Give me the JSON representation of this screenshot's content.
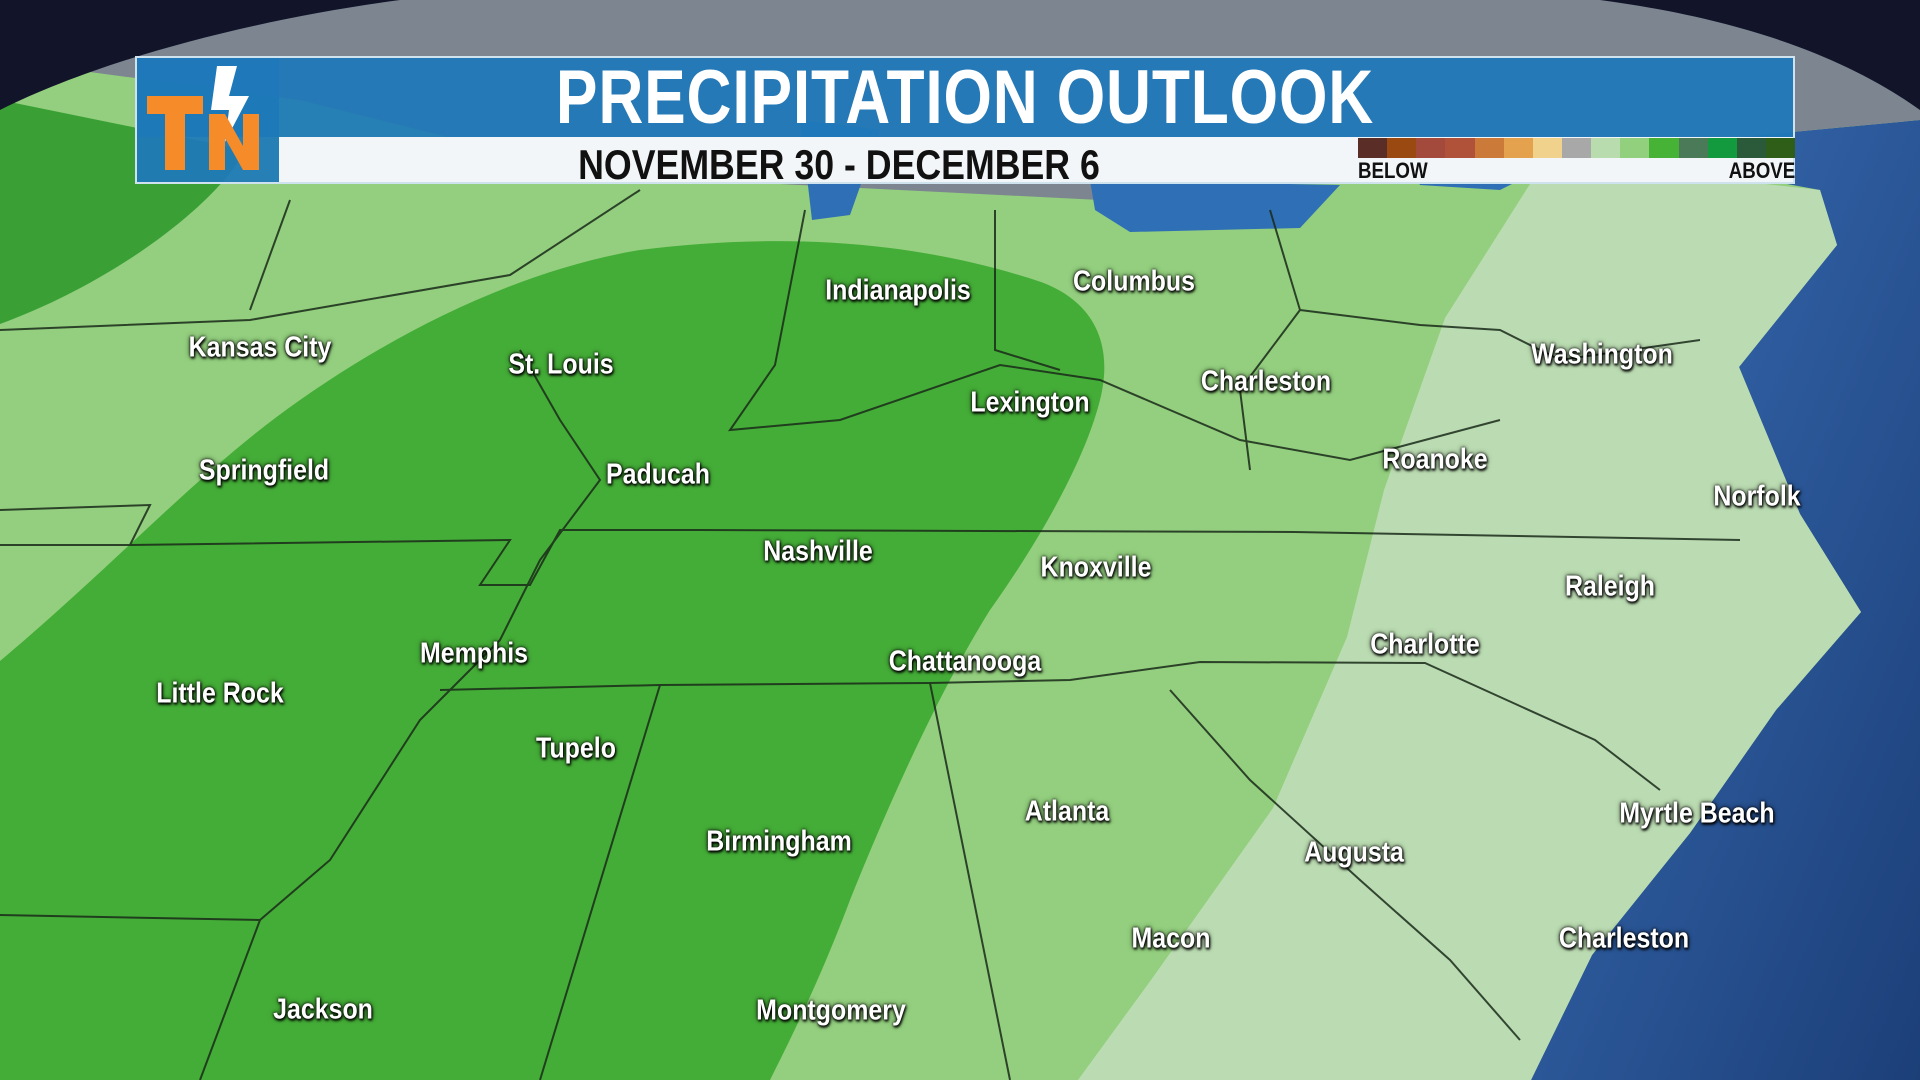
{
  "header": {
    "title": "PRECIPITATION OUTLOOK",
    "subtitle": "NOVEMBER 30 - DECEMBER 6",
    "logo_text": "TN"
  },
  "legend": {
    "below_label": "BELOW",
    "above_label": "ABOVE",
    "colors": [
      "#5a2e26",
      "#9a4a10",
      "#a44a3c",
      "#b0523a",
      "#cc7a3a",
      "#e4a24e",
      "#f0d28c",
      "#a8a8a8",
      "#b8dcae",
      "#92d07d",
      "#46b236",
      "#4a7a58",
      "#139a3e",
      "#2a5a3a",
      "#2e5e18"
    ]
  },
  "map_colors": {
    "well_above": "#44ad37",
    "above": "#93cf7e",
    "slightly_above": "#bbdcb2",
    "far_above": "#3aa036",
    "ocean": "#2a5a9e"
  },
  "cities": [
    "Indianapolis",
    "Columbus",
    "Kansas City",
    "St. Louis",
    "Lexington",
    "Charleston",
    "Washington",
    "Springfield",
    "Paducah",
    "Roanoke",
    "Norfolk",
    "Nashville",
    "Knoxville",
    "Raleigh",
    "Memphis",
    "Charlotte",
    "Little Rock",
    "Chattanooga",
    "Tupelo",
    "Atlanta",
    "Myrtle Beach",
    "Birmingham",
    "Augusta",
    "Macon",
    "Charleston",
    "Jackson",
    "Montgomery"
  ]
}
